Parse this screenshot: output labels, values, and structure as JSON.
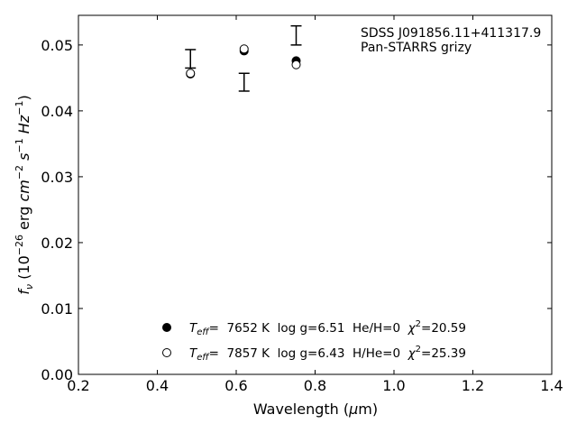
{
  "chart_data": {
    "type": "scatter",
    "xlabel": {
      "pre": "Wavelength (",
      "greek": "μ",
      "post": "m)"
    },
    "ylabel": {
      "f": "f",
      "nu": "ν",
      "open": " (10",
      "exp1": "−26",
      "erg": " erg ",
      "cm": "cm",
      "exp2": "−2",
      "sp1": " ",
      "s": "s",
      "exp3": "−1",
      "sp2": " ",
      "hz": "Hz",
      "exp4": "−1",
      "close": ")"
    },
    "xlim": [
      0.2,
      1.4
    ],
    "ylim": [
      0.0,
      0.0545
    ],
    "xticks": [
      "0.2",
      "0.4",
      "0.6",
      "0.8",
      "1.0",
      "1.2",
      "1.4"
    ],
    "yticks": [
      "0.00",
      "0.01",
      "0.02",
      "0.03",
      "0.04",
      "0.05"
    ],
    "xtick_values": [
      0.2,
      0.4,
      0.6,
      0.8,
      1.0,
      1.2,
      1.4
    ],
    "ytick_values": [
      0.0,
      0.01,
      0.02,
      0.03,
      0.04,
      0.05
    ],
    "annotation": [
      "SDSS J091856.11+411317.9",
      "Pan-STARRS grizy"
    ],
    "observed": [
      {
        "x": 0.484,
        "low": 0.0465,
        "high": 0.0493
      },
      {
        "x": 0.62,
        "low": 0.043,
        "high": 0.0457
      },
      {
        "x": 0.752,
        "low": 0.05,
        "high": 0.0529
      }
    ],
    "series": [
      {
        "marker": "filled",
        "legend": {
          "teff": "T",
          "eff_sub": "eff",
          "text": "=  7652 K  log g=6.51  He/H=0  ",
          "chi": "χ",
          "chi_sup": "2",
          "chi_val": "=20.59"
        },
        "points": [
          {
            "x": 0.484,
            "y": 0.0456
          },
          {
            "x": 0.62,
            "y": 0.0491
          },
          {
            "x": 0.752,
            "y": 0.0476
          }
        ]
      },
      {
        "marker": "open",
        "legend": {
          "teff": "T",
          "eff_sub": "eff",
          "text": "=  7857 K  log g=6.43  H/He=0  ",
          "chi": "χ",
          "chi_sup": "2",
          "chi_val": "=25.39"
        },
        "points": [
          {
            "x": 0.484,
            "y": 0.0457
          },
          {
            "x": 0.62,
            "y": 0.0494
          },
          {
            "x": 0.752,
            "y": 0.047
          }
        ]
      }
    ],
    "legend_placement": "bottom-center",
    "grid": false
  }
}
